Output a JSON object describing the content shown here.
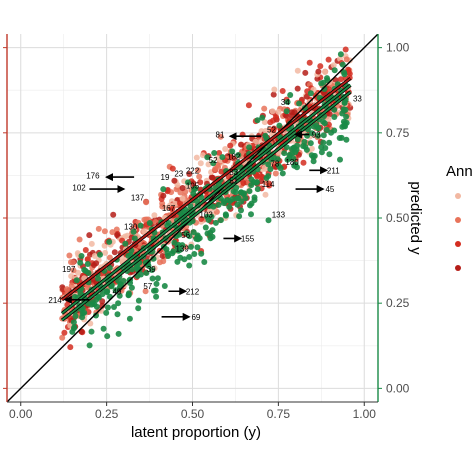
{
  "chart_data": {
    "type": "scatter",
    "xlabel": "latent proportion (y)",
    "ylabel": "predicted y",
    "xlim": [
      -0.04,
      1.04
    ],
    "ylim": [
      -0.04,
      1.04
    ],
    "x_ticks": [
      "0.00",
      "0.25",
      "0.50",
      "0.75",
      "1.00"
    ],
    "y_ticks": [
      "0.00",
      "0.25",
      "0.50",
      "0.75",
      "1.00"
    ],
    "grid": true,
    "legend": {
      "title": "Ann",
      "position": "right"
    },
    "colors": {
      "green": "#1a8a46",
      "red_light": "#f2b8a2",
      "red_mid": "#e8735a",
      "red_dark": "#d42d20",
      "red_deep": "#b51d18",
      "left_axis": "#c0392b",
      "right_axis": "#1a8a46",
      "identity_line": "#000000"
    },
    "identity_line": {
      "x": [
        -0.04,
        1.04
      ],
      "y": [
        -0.04,
        1.04
      ]
    },
    "fit_lines": [
      {
        "name": "",
        "color": "#b51d18",
        "x": [
          0.12,
          0.96
        ],
        "y": [
          0.26,
          0.91
        ]
      },
      {
        "name": "",
        "color": "#1a8a46",
        "x": [
          0.12,
          0.96
        ],
        "y": [
          0.22,
          0.89
        ]
      },
      {
        "name": "",
        "color": "#1a8a46",
        "x": [
          0.12,
          0.96
        ],
        "y": [
          0.2,
          0.87
        ]
      }
    ],
    "arrows": [
      {
        "label": "81",
        "x0": 0.7,
        "y0": 0.74,
        "x1": 0.61,
        "y1": 0.74
      },
      {
        "label": "176",
        "x0": 0.33,
        "y0": 0.62,
        "x1": 0.25,
        "y1": 0.62
      },
      {
        "label": "102",
        "x0": 0.2,
        "y0": 0.585,
        "x1": 0.3,
        "y1": 0.585
      },
      {
        "label": "45",
        "x0": 0.8,
        "y0": 0.585,
        "x1": 0.88,
        "y1": 0.585
      },
      {
        "label": "211",
        "x0": 0.84,
        "y0": 0.64,
        "x1": 0.89,
        "y1": 0.64
      },
      {
        "label": "155",
        "x0": 0.59,
        "y0": 0.44,
        "x1": 0.64,
        "y1": 0.44
      },
      {
        "label": "212",
        "x0": 0.43,
        "y0": 0.285,
        "x1": 0.48,
        "y1": 0.285
      },
      {
        "label": "214",
        "x0": 0.2,
        "y0": 0.26,
        "x1": 0.13,
        "y1": 0.26
      },
      {
        "label": "69",
        "x0": 0.41,
        "y0": 0.21,
        "x1": 0.49,
        "y1": 0.21
      },
      {
        "label": "93",
        "x0": 0.84,
        "y0": 0.745,
        "x1": 0.8,
        "y1": 0.745
      }
    ],
    "annotations": [
      {
        "label": "34",
        "x": 0.77,
        "y": 0.84
      },
      {
        "label": "33",
        "x": 0.98,
        "y": 0.85
      },
      {
        "label": "52",
        "x": 0.73,
        "y": 0.76
      },
      {
        "label": "93",
        "x": 0.86,
        "y": 0.745
      },
      {
        "label": "81",
        "x": 0.58,
        "y": 0.745
      },
      {
        "label": "182",
        "x": 0.62,
        "y": 0.68
      },
      {
        "label": "52",
        "x": 0.56,
        "y": 0.67
      },
      {
        "label": "176",
        "x": 0.21,
        "y": 0.625
      },
      {
        "label": "222",
        "x": 0.5,
        "y": 0.64
      },
      {
        "label": "23",
        "x": 0.46,
        "y": 0.63
      },
      {
        "label": "19",
        "x": 0.42,
        "y": 0.62
      },
      {
        "label": "102",
        "x": 0.17,
        "y": 0.59
      },
      {
        "label": "105",
        "x": 0.5,
        "y": 0.595
      },
      {
        "label": "83",
        "x": 0.62,
        "y": 0.635
      },
      {
        "label": "180",
        "x": 0.79,
        "y": 0.665
      },
      {
        "label": "78",
        "x": 0.74,
        "y": 0.66
      },
      {
        "label": "211",
        "x": 0.91,
        "y": 0.64
      },
      {
        "label": "114",
        "x": 0.72,
        "y": 0.6
      },
      {
        "label": "45",
        "x": 0.9,
        "y": 0.585
      },
      {
        "label": "137",
        "x": 0.34,
        "y": 0.56
      },
      {
        "label": "167",
        "x": 0.43,
        "y": 0.53
      },
      {
        "label": "103",
        "x": 0.54,
        "y": 0.51
      },
      {
        "label": "133",
        "x": 0.75,
        "y": 0.51
      },
      {
        "label": "130",
        "x": 0.32,
        "y": 0.475
      },
      {
        "label": "56",
        "x": 0.48,
        "y": 0.45
      },
      {
        "label": "155",
        "x": 0.66,
        "y": 0.44
      },
      {
        "label": "139",
        "x": 0.47,
        "y": 0.41
      },
      {
        "label": "197",
        "x": 0.14,
        "y": 0.35
      },
      {
        "label": "39",
        "x": 0.38,
        "y": 0.35
      },
      {
        "label": "212",
        "x": 0.5,
        "y": 0.285
      },
      {
        "label": "49",
        "x": 0.28,
        "y": 0.285
      },
      {
        "label": "57",
        "x": 0.37,
        "y": 0.3
      },
      {
        "label": "214",
        "x": 0.1,
        "y": 0.26
      },
      {
        "label": "69",
        "x": 0.51,
        "y": 0.21
      },
      {
        "label": "51",
        "x": 0.62,
        "y": 0.61
      }
    ]
  },
  "legend_items": [
    {
      "color": "#f2b8a2"
    },
    {
      "color": "#e8735a"
    },
    {
      "color": "#d42d20"
    },
    {
      "color": "#b51d18"
    }
  ]
}
